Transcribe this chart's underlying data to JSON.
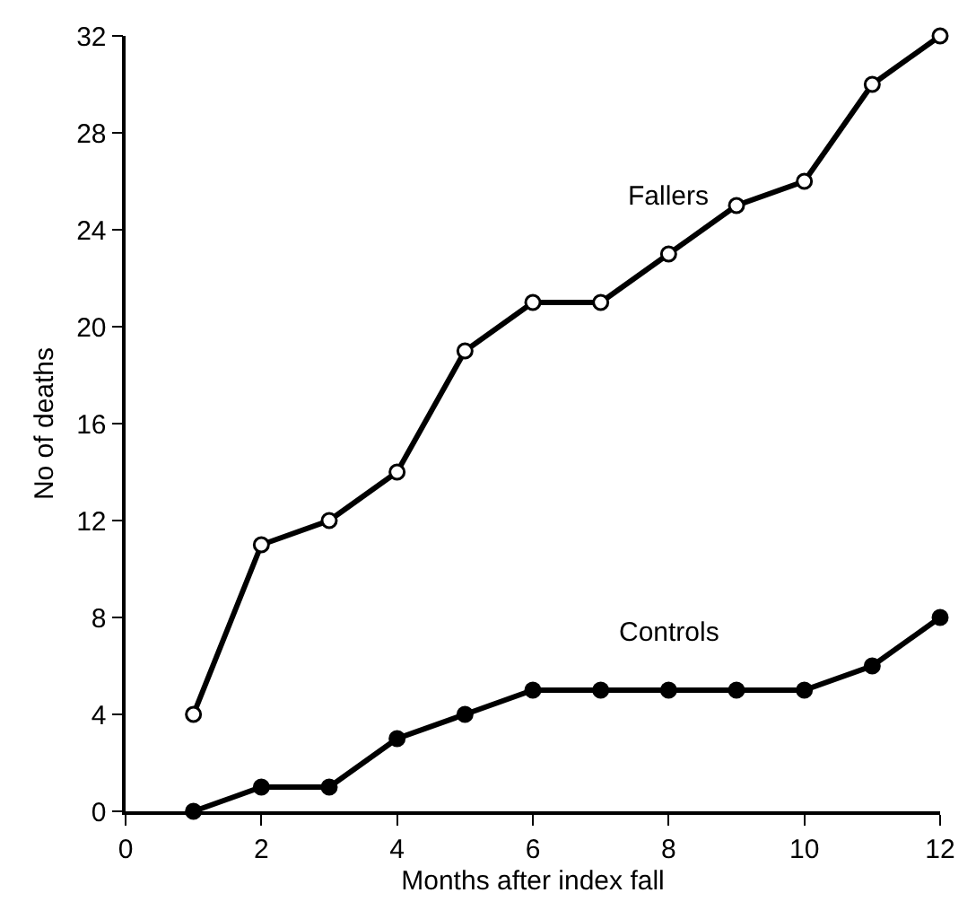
{
  "chart_data": {
    "type": "line",
    "xlabel": "Months after index fall",
    "ylabel": "No of deaths",
    "x": [
      1,
      2,
      3,
      4,
      5,
      6,
      7,
      8,
      9,
      10,
      11,
      12
    ],
    "series": [
      {
        "name": "Fallers",
        "color": "#000000",
        "values": [
          4,
          11,
          12,
          14,
          19,
          21,
          21,
          23,
          25,
          26,
          30,
          32
        ]
      },
      {
        "name": "Controls",
        "color": "#000000",
        "values": [
          0,
          1,
          1,
          3,
          4,
          5,
          5,
          5,
          5,
          5,
          6,
          8
        ]
      }
    ],
    "xlim": [
      0,
      12
    ],
    "xticks": [
      0,
      2,
      4,
      6,
      8,
      10,
      12
    ],
    "ylim": [
      0,
      32
    ],
    "yticks": [
      0,
      4,
      8,
      12,
      16,
      20,
      24,
      28,
      32
    ],
    "grid": false,
    "legend": false,
    "marker": "circle",
    "line_style": "solid"
  }
}
